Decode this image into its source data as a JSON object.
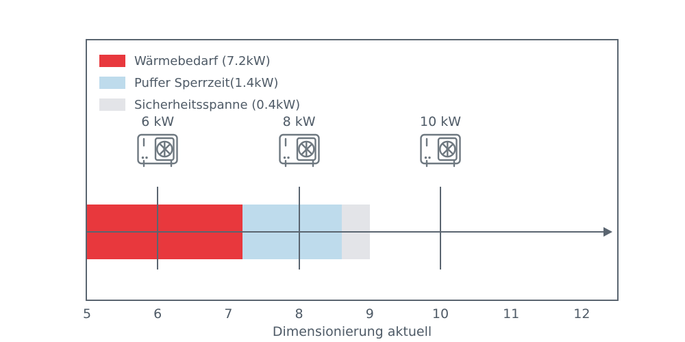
{
  "chart_data": {
    "type": "bar",
    "orientation": "horizontal",
    "title": "",
    "xlabel": "Dimensionierung aktuell",
    "xlim": [
      5,
      12.5
    ],
    "x_ticks": [
      5,
      6,
      7,
      8,
      9,
      10,
      11,
      12
    ],
    "grid": false,
    "legend_position": "upper left",
    "axis_color": "#5a6570",
    "text_color": "#4e5a66",
    "bar": {
      "start": 5,
      "segments": [
        {
          "name": "waermebedarf",
          "label": "Wärmebedarf (7.2kW)",
          "value_kw": 7.2,
          "from": 5.0,
          "to": 7.2,
          "color": "#e8383d"
        },
        {
          "name": "puffer-sperrzeit",
          "label": "Puffer Sperrzeit(1.4kW)",
          "value_kw": 1.4,
          "from": 7.2,
          "to": 8.6,
          "color": "#bedbec"
        },
        {
          "name": "sicherheitsspanne",
          "label": "Sicherheitsspanne (0.4kW)",
          "value_kw": 0.4,
          "from": 8.6,
          "to": 9.0,
          "color": "#e3e4e8"
        }
      ]
    },
    "markers": [
      {
        "label": "6 kW",
        "value": 6,
        "icon": "heat-pump-icon"
      },
      {
        "label": "8 kW",
        "value": 8,
        "icon": "heat-pump-icon"
      },
      {
        "label": "10 kW",
        "value": 10,
        "icon": "heat-pump-icon"
      }
    ]
  }
}
